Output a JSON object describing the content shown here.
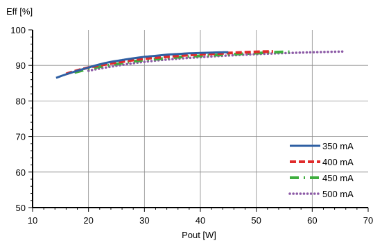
{
  "chart_data": {
    "type": "line",
    "title": "",
    "xlabel": "Pout [W]",
    "ylabel": "Eff [%]",
    "xlim": [
      10,
      70
    ],
    "ylim": [
      50,
      100
    ],
    "xticks": [
      10,
      20,
      30,
      40,
      50,
      60,
      70
    ],
    "yticks": [
      50,
      60,
      70,
      80,
      90,
      100
    ],
    "grid": true,
    "legend_position": "bottom-right",
    "series": [
      {
        "name": "350 mA",
        "color": "#2e5fa3",
        "style": "solid",
        "x": [
          14.2,
          16,
          18,
          20,
          22,
          24,
          26,
          28,
          30,
          32,
          34,
          36,
          38,
          40,
          42,
          44,
          45
        ],
        "y": [
          86.5,
          87.5,
          88.5,
          89.4,
          90.3,
          91.0,
          91.5,
          92.0,
          92.4,
          92.7,
          93.0,
          93.2,
          93.4,
          93.5,
          93.6,
          93.7,
          93.7
        ]
      },
      {
        "name": "400 mA",
        "color": "#e02b2b",
        "style": "dash",
        "x": [
          16,
          18,
          20,
          22,
          25,
          28,
          30,
          33,
          36,
          40,
          44,
          48,
          52,
          53
        ],
        "y": [
          87.6,
          88.6,
          89.4,
          90.0,
          90.8,
          91.5,
          91.9,
          92.3,
          92.7,
          93.1,
          93.4,
          93.7,
          93.9,
          93.9
        ]
      },
      {
        "name": "450 mA",
        "color": "#3fae3f",
        "style": "dashdot",
        "x": [
          17.5,
          20,
          22,
          25,
          28,
          30,
          33,
          36,
          40,
          44,
          48,
          52,
          55,
          56.5
        ],
        "y": [
          88.0,
          89.0,
          89.6,
          90.4,
          91.1,
          91.5,
          91.9,
          92.3,
          92.7,
          93.0,
          93.3,
          93.6,
          93.8,
          93.8
        ]
      },
      {
        "name": "500 mA",
        "color": "#8c5aa6",
        "style": "dot",
        "x": [
          20,
          22,
          25,
          28,
          30,
          33,
          36,
          40,
          44,
          48,
          52,
          56,
          60,
          65.5
        ],
        "y": [
          88.5,
          89.1,
          89.9,
          90.6,
          91.0,
          91.5,
          91.9,
          92.3,
          92.7,
          93.0,
          93.3,
          93.5,
          93.7,
          93.9
        ]
      }
    ]
  }
}
